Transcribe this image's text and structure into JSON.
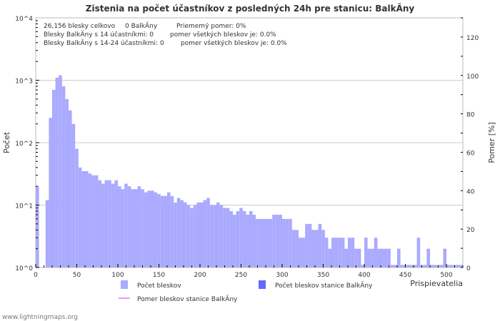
{
  "chart_data": {
    "type": "bar",
    "title": "Zistenia na počet účastníkov z posledných 24h pre stanicu: BalkÃ­ny",
    "xlabel": "Prispievatelia",
    "ylabel": "Počet",
    "y2label": "Pomer [%]",
    "yscale": "log",
    "ylim": [
      1,
      10000
    ],
    "y2lim": [
      0,
      130
    ],
    "xlim": [
      0,
      520
    ],
    "y_ticks": [
      "10^0",
      "10^1",
      "10^2",
      "10^3",
      "10^4"
    ],
    "y2_ticks": [
      "0",
      "20",
      "40",
      "60",
      "80",
      "100",
      "120"
    ],
    "x_ticks": [
      "0",
      "50",
      "100",
      "150",
      "200",
      "250",
      "300",
      "350",
      "400",
      "450",
      "500"
    ],
    "bin_width": 4,
    "bin_start": 0,
    "series": [
      {
        "name": "Počet bleskov",
        "color": "#aaaaff",
        "values": [
          20,
          0,
          0,
          12,
          250,
          700,
          1100,
          1200,
          800,
          500,
          330,
          200,
          80,
          40,
          35,
          35,
          32,
          30,
          30,
          25,
          22,
          25,
          25,
          22,
          25,
          20,
          18,
          22,
          20,
          18,
          18,
          20,
          18,
          16,
          17,
          17,
          16,
          15,
          14,
          14,
          16,
          14,
          11,
          13,
          12,
          11,
          10,
          9,
          10,
          11,
          11,
          12,
          13,
          10,
          10,
          11,
          10,
          9,
          9,
          8,
          7,
          8,
          9,
          8,
          7,
          8,
          7,
          6,
          6,
          6,
          6,
          6,
          7,
          7,
          7,
          6,
          6,
          6,
          4,
          4,
          3,
          3,
          5,
          5,
          4,
          4,
          5,
          4,
          3,
          2,
          3,
          3,
          3,
          3,
          2,
          3,
          3,
          2,
          2,
          1.1,
          3,
          2,
          2,
          3,
          2,
          2,
          2,
          2,
          1.1,
          1.1,
          2,
          1.1,
          1.1,
          1.1,
          1.1,
          1.1,
          3,
          1.1,
          1.1,
          2,
          1.1,
          1.1,
          1.1,
          1.1,
          2,
          1.1,
          1.1,
          1.1,
          1.1,
          1.1
        ]
      },
      {
        "name": "Počet bleskov stanice BalkÃ­ny",
        "color": "#6666ff",
        "values": []
      },
      {
        "name": "Pomer bleskov stanice BalkÃ­ny",
        "color": "#ee99ee",
        "values": []
      }
    ],
    "stats": {
      "line1a": "26,156 blesky celkovo",
      "line1b": "0 BalkÃ­ny",
      "line1c": "Priememý pomer: 0%",
      "line2a": "Blesky BalkÃ­ny s 14 účastníkmi: 0",
      "line2b": "pomer všetkých bleskov je: 0.0%",
      "line3a": "Blesky BalkÃ­ny s 14-24 účastníkmi: 0",
      "line3b": "pomer všetkých bleskov je: 0.0%"
    }
  },
  "footer": "www.lightningmaps.org"
}
